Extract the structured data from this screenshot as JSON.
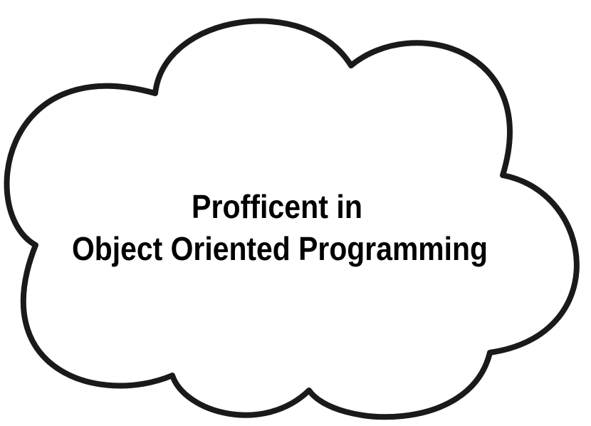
{
  "cloud": {
    "line1": "Profficent in",
    "line2": "Object Oriented Programming",
    "fill_color": "#ffffff",
    "stroke_color": "#1a1a1a",
    "text_color": "#000000"
  }
}
